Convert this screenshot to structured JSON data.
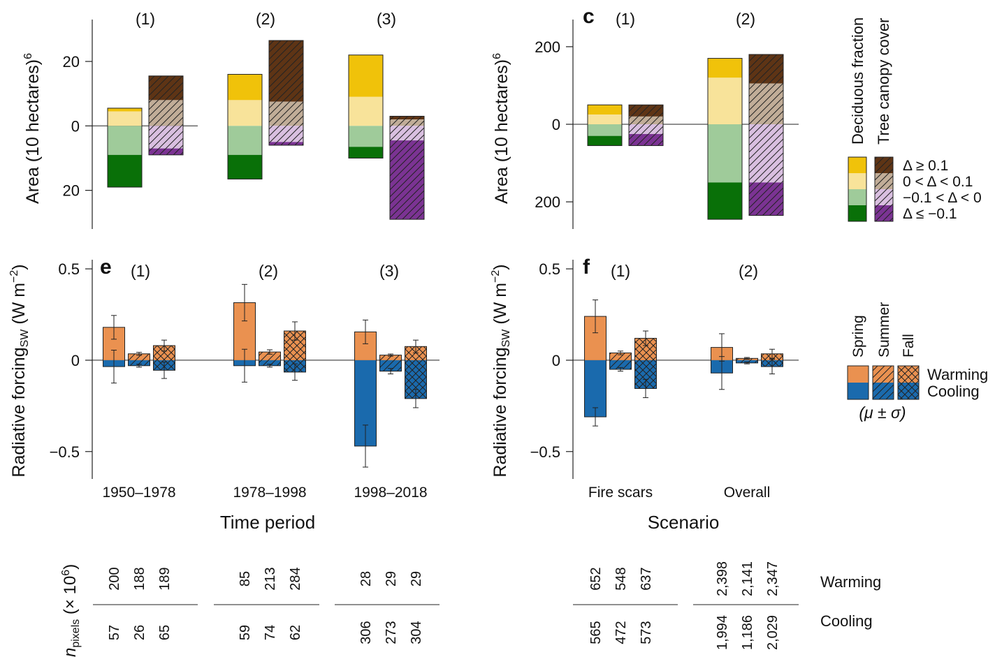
{
  "colors": {
    "dec_pos_high": "#f0c20a",
    "dec_pos_low": "#f8e39a",
    "dec_neg_low": "#9fcb9a",
    "dec_neg_high": "#097008",
    "tree_pos_high": "#5e3415",
    "tree_pos_low": "#c1ad98",
    "tree_neg_low": "#d9bfe0",
    "tree_neg_high": "#7b3393",
    "warming": "#ea9150",
    "cooling": "#1a6aad"
  },
  "chart_data": [
    {
      "id": "area_time",
      "type": "bar",
      "ylabel_main": "Area (10",
      "ylabel_sup": "6",
      "ylabel_tail": " hectares)",
      "yticks": [
        {
          "v": 20,
          "label": "20"
        },
        {
          "v": 0,
          "label": "0"
        },
        {
          "v": -20,
          "label": "20"
        }
      ],
      "ylim": [
        -32,
        33
      ],
      "groups": [
        {
          "label": "(1)",
          "deciduous": [
            1,
            4.5,
            -9,
            -10
          ],
          "tree": [
            7.5,
            8,
            -7,
            -2
          ]
        },
        {
          "label": "(2)",
          "deciduous": [
            8,
            8,
            -9,
            -7.5
          ],
          "tree": [
            19,
            7.5,
            -5,
            -1
          ]
        },
        {
          "label": "(3)",
          "deciduous": [
            13,
            9,
            -6.5,
            -3.5
          ],
          "tree": [
            1,
            2,
            -4.5,
            -24.5
          ]
        }
      ]
    },
    {
      "id": "area_scenario",
      "type": "bar",
      "panel_letter": "c",
      "ylabel_main": "Area (10",
      "ylabel_sup": "6",
      "ylabel_tail": " hectares)",
      "yticks": [
        {
          "v": 200,
          "label": "200"
        },
        {
          "v": 0,
          "label": "0"
        },
        {
          "v": -200,
          "label": "200"
        }
      ],
      "ylim": [
        -270,
        270
      ],
      "groups": [
        {
          "label": "(1)",
          "deciduous": [
            25,
            25,
            -30,
            -25
          ],
          "tree": [
            30,
            20,
            -25,
            -30
          ]
        },
        {
          "label": "(2)",
          "deciduous": [
            50,
            120,
            -150,
            -95
          ],
          "tree": [
            75,
            105,
            -150,
            -85
          ]
        }
      ]
    },
    {
      "id": "rf_time",
      "type": "bar",
      "panel_letter": "e",
      "ylabel_main": "Radiative forcing",
      "ylabel_sub": "SW",
      "ylabel_tail": " (W m",
      "ylabel_sup": "−2",
      "ylabel_end": ")",
      "yticks": [
        {
          "v": 0.5,
          "label": "0.5"
        },
        {
          "v": 0,
          "label": "0"
        },
        {
          "v": -0.5,
          "label": "−0.5"
        }
      ],
      "ylim": [
        -0.65,
        0.55
      ],
      "xlabel": "Time period",
      "groups": [
        {
          "label": "(1)",
          "xcat": "1950–1978",
          "seasons": [
            {
              "season": "Spring",
              "warm": 0.18,
              "warm_sd": 0.065,
              "cool": -0.035,
              "cool_sd": 0.09
            },
            {
              "season": "Summer",
              "warm": 0.035,
              "warm_sd": 0.008,
              "cool": -0.03,
              "cool_sd": 0.008
            },
            {
              "season": "Fall",
              "warm": 0.08,
              "warm_sd": 0.03,
              "cool": -0.055,
              "cool_sd": 0.045
            }
          ]
        },
        {
          "label": "(2)",
          "xcat": "1978–1998",
          "seasons": [
            {
              "season": "Spring",
              "warm": 0.315,
              "warm_sd": 0.1,
              "cool": -0.03,
              "cool_sd": 0.09
            },
            {
              "season": "Summer",
              "warm": 0.045,
              "warm_sd": 0.012,
              "cool": -0.03,
              "cool_sd": 0.008
            },
            {
              "season": "Fall",
              "warm": 0.16,
              "warm_sd": 0.05,
              "cool": -0.065,
              "cool_sd": 0.045
            }
          ]
        },
        {
          "label": "(3)",
          "xcat": "1998–2018",
          "seasons": [
            {
              "season": "Spring",
              "warm": 0.155,
              "warm_sd": 0.065,
              "cool": -0.47,
              "cool_sd": 0.115
            },
            {
              "season": "Summer",
              "warm": 0.028,
              "warm_sd": 0.006,
              "cool": -0.06,
              "cool_sd": 0.015
            },
            {
              "season": "Fall",
              "warm": 0.075,
              "warm_sd": 0.035,
              "cool": -0.21,
              "cool_sd": 0.05
            }
          ]
        }
      ],
      "npixels_warming": [
        [
          "200",
          "188",
          "189"
        ],
        [
          "85",
          "213",
          "284"
        ],
        [
          "28",
          "29",
          "29"
        ]
      ],
      "npixels_cooling": [
        [
          "57",
          "26",
          "65"
        ],
        [
          "59",
          "74",
          "62"
        ],
        [
          "306",
          "273",
          "304"
        ]
      ]
    },
    {
      "id": "rf_scenario",
      "type": "bar",
      "panel_letter": "f",
      "ylabel_main": "Radiative forcing",
      "ylabel_sub": "SW",
      "ylabel_tail": " (W m",
      "ylabel_sup": "−2",
      "ylabel_end": ")",
      "yticks": [
        {
          "v": 0.5,
          "label": "0.5"
        },
        {
          "v": 0,
          "label": "0"
        },
        {
          "v": -0.5,
          "label": "−0.5"
        }
      ],
      "ylim": [
        -0.65,
        0.55
      ],
      "xlabel": "Scenario",
      "groups": [
        {
          "label": "(1)",
          "xcat": "Fire scars",
          "seasons": [
            {
              "season": "Spring",
              "warm": 0.24,
              "warm_sd": 0.09,
              "cool": -0.31,
              "cool_sd": 0.05
            },
            {
              "season": "Summer",
              "warm": 0.04,
              "warm_sd": 0.01,
              "cool": -0.05,
              "cool_sd": 0.01
            },
            {
              "season": "Fall",
              "warm": 0.12,
              "warm_sd": 0.04,
              "cool": -0.155,
              "cool_sd": 0.05
            }
          ]
        },
        {
          "label": "(2)",
          "xcat": "Overall",
          "seasons": [
            {
              "season": "Spring",
              "warm": 0.07,
              "warm_sd": 0.075,
              "cool": -0.07,
              "cool_sd": 0.09
            },
            {
              "season": "Summer",
              "warm": 0.01,
              "warm_sd": 0.005,
              "cool": -0.015,
              "cool_sd": 0.005
            },
            {
              "season": "Fall",
              "warm": 0.035,
              "warm_sd": 0.025,
              "cool": -0.035,
              "cool_sd": 0.04
            }
          ]
        }
      ],
      "npixels_warming": [
        [
          "652",
          "548",
          "637"
        ],
        [
          "2,398",
          "2,141",
          "2,347"
        ]
      ],
      "npixels_cooling": [
        [
          "565",
          "472",
          "573"
        ],
        [
          "1,994",
          "1,186",
          "2,029"
        ]
      ]
    }
  ],
  "legend_area": {
    "header_deciduous": "Deciduous fraction",
    "header_tree": "Tree canopy cover",
    "rows": [
      "Δ ≥ 0.1",
      "0 < Δ < 0.1",
      "−0.1 < Δ < 0",
      "Δ ≤ −0.1"
    ]
  },
  "legend_rf": {
    "seasons": [
      "Spring",
      "Summer",
      "Fall"
    ],
    "warming": "Warming",
    "cooling": "Cooling",
    "stat": "(μ ± σ)"
  },
  "npixels": {
    "label_main": "n",
    "label_sub": "pixels",
    "label_tail": " (× 10",
    "label_sup": "6",
    "label_end": ")",
    "row_warming": "Warming",
    "row_cooling": "Cooling"
  }
}
